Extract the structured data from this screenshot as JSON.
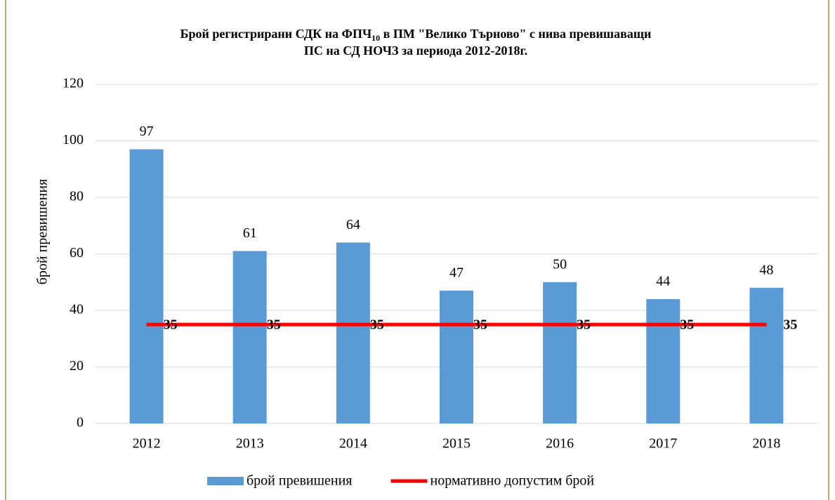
{
  "chart_data": {
    "type": "bar",
    "title_parts": [
      "Брой регистрирани СДК на ФПЧ",
      "10",
      " в ПМ \"Велико Търново\" с нива превишаващи",
      "ПС на СД НОЧЗ за периода 2012-2018г."
    ],
    "y_label": "брой превишения",
    "categories": [
      "2012",
      "2013",
      "2014",
      "2015",
      "2016",
      "2017",
      "2018"
    ],
    "series": [
      {
        "name": "брой превишения",
        "type": "bar",
        "color": "#5b9bd5",
        "values": [
          97,
          61,
          64,
          47,
          50,
          44,
          48
        ]
      },
      {
        "name": "нормативно допустим брой",
        "type": "line",
        "color": "#ff0000",
        "values": [
          35,
          35,
          35,
          35,
          35,
          35,
          35
        ]
      }
    ],
    "ylim": [
      0,
      120
    ],
    "yticks": [
      0,
      20,
      40,
      60,
      80,
      100,
      120
    ],
    "grid": true,
    "legend": "bottom"
  }
}
